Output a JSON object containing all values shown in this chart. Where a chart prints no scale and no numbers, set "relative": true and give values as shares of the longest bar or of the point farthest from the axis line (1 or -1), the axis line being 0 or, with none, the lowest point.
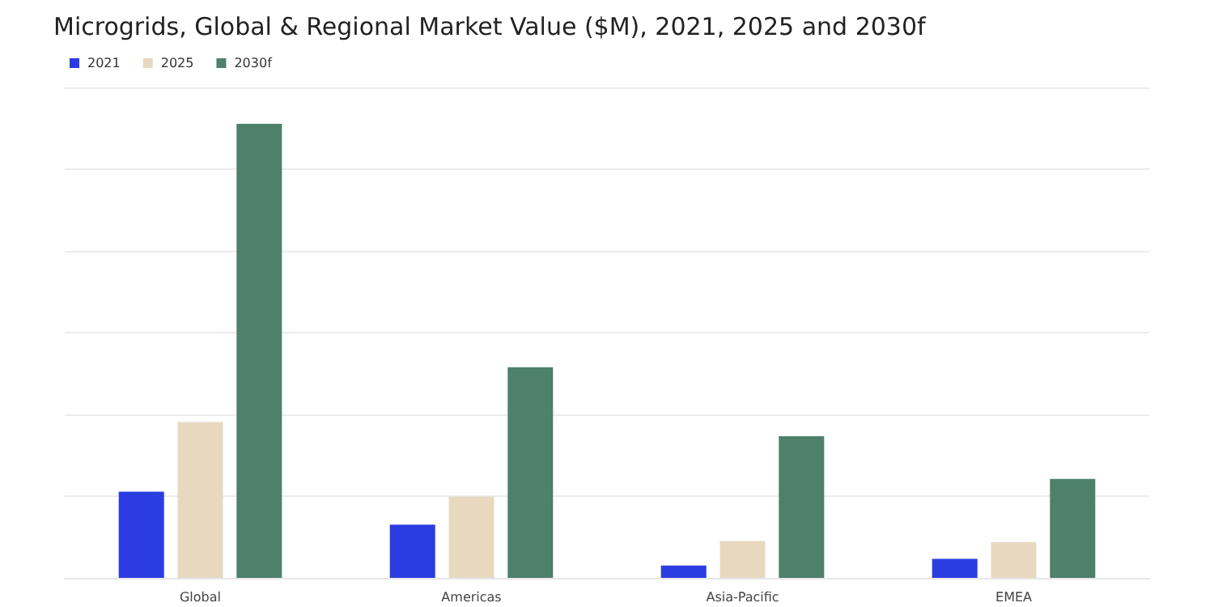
{
  "chart_data": {
    "type": "bar",
    "title": "Microgrids, Global & Regional Market Value ($M), 2021, 2025 and 2030f",
    "categories": [
      "Global",
      "Americas",
      "Asia-Pacific",
      "EMEA"
    ],
    "relative": true,
    "grid": "y",
    "legend": "top left",
    "series": [
      {
        "name": "2021",
        "color": "#2b3de0",
        "values": [
          0.19,
          0.117,
          0.027,
          0.042
        ]
      },
      {
        "name": "2025",
        "color": "#e8d8bf",
        "values": [
          0.343,
          0.179,
          0.081,
          0.079
        ]
      },
      {
        "name": "2030f",
        "color": "#4e806c",
        "values": [
          1,
          0.464,
          0.312,
          0.218
        ]
      }
    ]
  }
}
